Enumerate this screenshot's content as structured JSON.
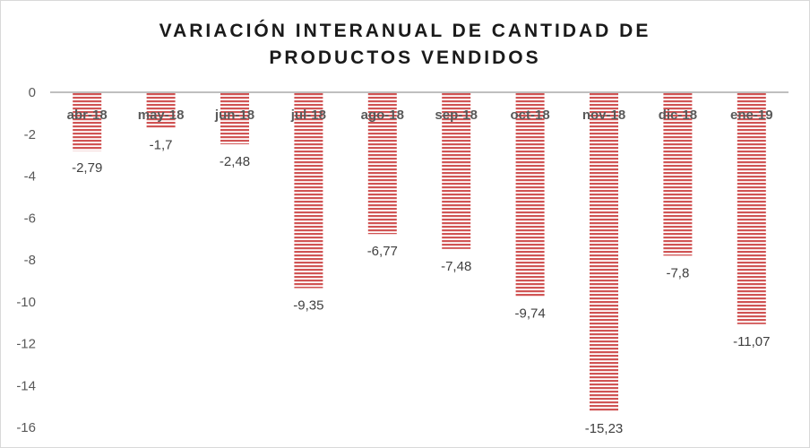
{
  "chart_data": {
    "type": "bar",
    "title_line1": "VARIACIÓN INTERANUAL DE CANTIDAD DE",
    "title_line2": "PRODUCTOS VENDIDOS",
    "categories": [
      "abr-18",
      "may-18",
      "jun-18",
      "jul-18",
      "ago-18",
      "sep-18",
      "oct-18",
      "nov-18",
      "dic-18",
      "ene-19"
    ],
    "values": [
      -2.79,
      -1.7,
      -2.48,
      -9.35,
      -6.77,
      -7.48,
      -9.74,
      -15.23,
      -7.8,
      -11.07
    ],
    "data_labels": [
      "-2,79",
      "-1,7",
      "-2,48",
      "-9,35",
      "-6,77",
      "-7,48",
      "-9,74",
      "-15,23",
      "-7,8",
      "-11,07"
    ],
    "yticks": [
      0,
      -2,
      -4,
      -6,
      -8,
      -10,
      -12,
      -14,
      -16
    ],
    "ylim": [
      -16,
      0
    ],
    "xlabel": "",
    "ylabel": "",
    "grid": false,
    "bar_color": "#d05454",
    "axis_color": "#bfbfbf"
  }
}
